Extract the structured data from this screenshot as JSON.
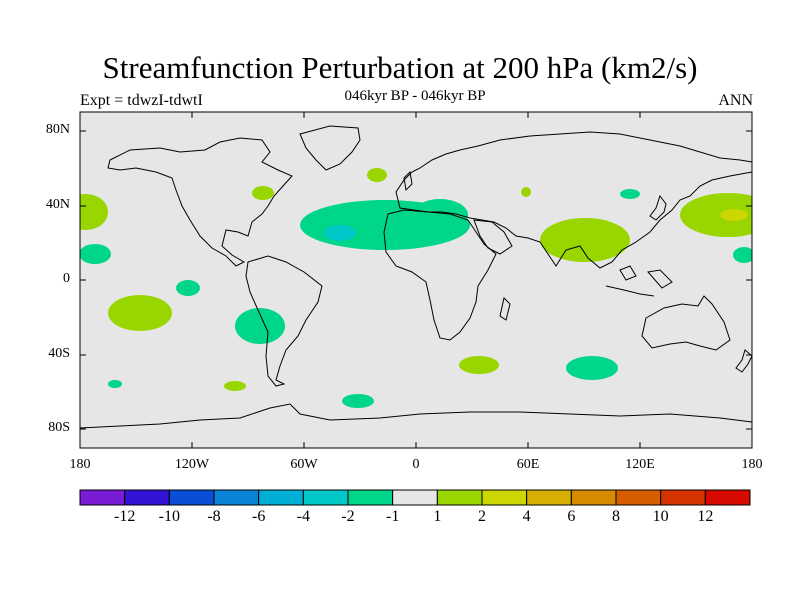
{
  "header": {
    "title": "Streamfunction Perturbation at 200 hPa (km2/s)",
    "subtitle": "046kyr BP - 046kyr BP",
    "left_label": "Expt = tdwzI-tdwtI",
    "right_label": "ANN"
  },
  "map": {
    "land_color": "#e6e6e6",
    "lat_labels": [
      "80N",
      "40N",
      "0",
      "40S",
      "80S"
    ],
    "lon_labels": [
      "180",
      "120W",
      "60W",
      "0",
      "60E",
      "120E",
      "180"
    ],
    "anomaly_patches": [
      {
        "sign": "positive",
        "level": "1 to 2",
        "color": "#99d600",
        "region": "northwest pacific"
      },
      {
        "sign": "positive",
        "level": "2 to 4",
        "color": "#ccd600",
        "region": "northwest pacific core"
      },
      {
        "sign": "positive",
        "level": "1 to 2",
        "color": "#99d600",
        "region": "tibetan plateau / south asia"
      },
      {
        "sign": "positive",
        "level": "1 to 2",
        "color": "#99d600",
        "region": "south pacific"
      },
      {
        "sign": "positive",
        "level": "1 to 2",
        "color": "#99d600",
        "region": "great lakes"
      },
      {
        "sign": "positive",
        "level": "1 to 2",
        "color": "#99d600",
        "region": "south atlantic"
      },
      {
        "sign": "negative",
        "level": "-1 to -2",
        "color": "#00d68a",
        "region": "north atlantic / mediterranean"
      },
      {
        "sign": "negative",
        "level": "-2 to -4",
        "color": "#00c8c8",
        "region": "central north atlantic core"
      },
      {
        "sign": "negative",
        "level": "-1 to -2",
        "color": "#00d68a",
        "region": "southeast pacific"
      },
      {
        "sign": "negative",
        "level": "-1 to -2",
        "color": "#00d68a",
        "region": "southern indian ocean"
      }
    ]
  },
  "colorbar": {
    "colors": [
      "#7a1bd6",
      "#3314d6",
      "#0a4ed6",
      "#0a82d6",
      "#00afd6",
      "#00c8c8",
      "#00d68a",
      "#e6e6e6",
      "#99d600",
      "#ccd600",
      "#d6af00",
      "#d68a00",
      "#d65e00",
      "#d63300",
      "#d60a00"
    ],
    "labels": [
      "-12",
      "-10",
      "-8",
      "-6",
      "-4",
      "-2",
      "-1",
      "1",
      "2",
      "4",
      "6",
      "8",
      "10",
      "12"
    ]
  }
}
